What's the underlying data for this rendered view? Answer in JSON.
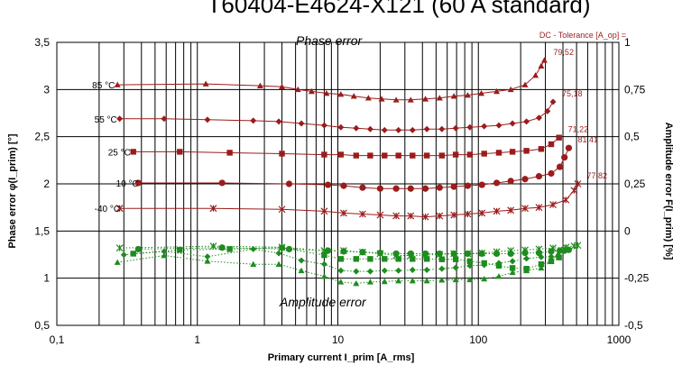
{
  "chart_data": {
    "type": "scatter",
    "title": "T60404-E4624-X121 (60 A standard)",
    "xlabel": "Primary current I_prim [A_rms]",
    "ylabel_left": "Phase error φ(I_prim) [°]",
    "ylabel_right": "Amplitude error F(I_prim) [%]",
    "x_scale": "log",
    "xlim": [
      0.1,
      1000
    ],
    "ylim_left": [
      0.5,
      3.5
    ],
    "ylim_right": [
      -0.5,
      1
    ],
    "x_ticks": [
      "0,1",
      "1",
      "10",
      "100",
      "1000"
    ],
    "y_ticks_left": [
      "0,5",
      "1",
      "1,5",
      "2",
      "2,5",
      "3",
      "3,5"
    ],
    "y_ticks_right": [
      "-0,5",
      "-0,25",
      "0",
      "0,25",
      "0,5",
      "0,75",
      "1"
    ],
    "grid": true,
    "annotations": {
      "phase": "Phase error",
      "amplitude": "Amplitude error",
      "dc_tolerance": "DC - Tolerance [A_op] ="
    },
    "phase_series": [
      {
        "name": "85 °C",
        "dc_value": "79,52",
        "marker": "triangle",
        "x": [
          0.27,
          1.15,
          2.8,
          4.0,
          5.2,
          6.5,
          8.3,
          10.5,
          13.0,
          16.5,
          20.5,
          26.0,
          33.0,
          42.0,
          53.0,
          67.0,
          84.0,
          105.0,
          135.0,
          170.0,
          215.0,
          255.0,
          280.0,
          295.0
        ],
        "y": [
          3.05,
          3.06,
          3.04,
          3.03,
          3.0,
          2.98,
          2.96,
          2.95,
          2.93,
          2.91,
          2.9,
          2.89,
          2.89,
          2.9,
          2.91,
          2.93,
          2.94,
          2.96,
          2.98,
          3.0,
          3.05,
          3.15,
          3.25,
          3.31
        ]
      },
      {
        "name": "55 °C",
        "dc_value": "75,18",
        "marker": "diamond",
        "x": [
          0.28,
          0.58,
          1.18,
          2.5,
          3.8,
          5.5,
          8.0,
          10.5,
          13.5,
          17.0,
          21.5,
          27.0,
          34.0,
          43.0,
          55.0,
          69.0,
          87.0,
          110.0,
          140.0,
          175.0,
          220.0,
          270.0,
          310.0,
          340.0
        ],
        "y": [
          2.69,
          2.69,
          2.68,
          2.67,
          2.66,
          2.64,
          2.62,
          2.6,
          2.59,
          2.58,
          2.57,
          2.57,
          2.57,
          2.58,
          2.58,
          2.59,
          2.6,
          2.61,
          2.62,
          2.64,
          2.66,
          2.7,
          2.77,
          2.87
        ]
      },
      {
        "name": "25 °C",
        "dc_value": "71,22",
        "marker": "square",
        "x": [
          0.35,
          0.75,
          1.7,
          4.0,
          8.0,
          10.5,
          13.5,
          17.0,
          21.5,
          27.0,
          34.0,
          43.0,
          55.0,
          69.0,
          87.0,
          110.0,
          140.0,
          175.0,
          220.0,
          280.0,
          330.0,
          375.0
        ],
        "y": [
          2.34,
          2.34,
          2.33,
          2.32,
          2.31,
          2.31,
          2.3,
          2.3,
          2.3,
          2.3,
          2.3,
          2.3,
          2.3,
          2.31,
          2.31,
          2.32,
          2.33,
          2.34,
          2.35,
          2.37,
          2.42,
          2.49
        ]
      },
      {
        "name": "-10 °C",
        "dc_value": "81,41",
        "marker": "circle",
        "x": [
          0.38,
          1.5,
          4.5,
          8.5,
          11.0,
          15.0,
          20.0,
          26.0,
          33.0,
          42.0,
          53.0,
          67.0,
          84.0,
          106.0,
          135.0,
          170.0,
          215.0,
          270.0,
          330.0,
          380.0,
          410.0,
          440.0
        ],
        "y": [
          2.01,
          2.01,
          2.0,
          1.99,
          1.98,
          1.96,
          1.95,
          1.95,
          1.95,
          1.95,
          1.96,
          1.97,
          1.98,
          1.99,
          2.01,
          2.03,
          2.05,
          2.08,
          2.11,
          2.18,
          2.28,
          2.38
        ]
      },
      {
        "name": "-40 °C",
        "dc_value": "77,82",
        "marker": "cross",
        "x": [
          0.28,
          1.3,
          4.0,
          8.0,
          11.0,
          15.0,
          20.0,
          26.0,
          33.0,
          42.0,
          53.0,
          67.0,
          84.0,
          106.0,
          135.0,
          170.0,
          215.0,
          270.0,
          340.0,
          420.0,
          480.0,
          510.0
        ],
        "y": [
          1.74,
          1.74,
          1.73,
          1.71,
          1.69,
          1.68,
          1.67,
          1.66,
          1.66,
          1.65,
          1.66,
          1.67,
          1.68,
          1.69,
          1.71,
          1.72,
          1.74,
          1.75,
          1.78,
          1.83,
          1.93,
          2.0
        ]
      }
    ],
    "amplitude_series": [
      {
        "name": "85 °C",
        "marker": "triangle",
        "x": [
          0.27,
          0.58,
          1.18,
          2.5,
          3.8,
          5.5,
          8.0,
          10.5,
          13.5,
          17.0,
          21.5,
          27.0,
          34.0,
          43.0,
          55.0,
          69.0,
          87.0,
          110.0,
          140.0,
          175.0,
          220.0,
          280.0,
          330.0,
          370.0
        ],
        "y": [
          -0.166,
          -0.13,
          -0.16,
          -0.176,
          -0.176,
          -0.21,
          -0.24,
          -0.27,
          -0.278,
          -0.27,
          -0.268,
          -0.264,
          -0.264,
          -0.264,
          -0.26,
          -0.258,
          -0.258,
          -0.254,
          -0.24,
          -0.22,
          -0.21,
          -0.196,
          -0.16,
          -0.12
        ]
      },
      {
        "name": "55 °C",
        "marker": "diamond",
        "x": [
          0.3,
          0.58,
          1.18,
          2.5,
          3.8,
          5.5,
          8.0,
          10.5,
          13.5,
          17.0,
          21.5,
          27.0,
          34.0,
          43.0,
          55.0,
          69.0,
          87.0,
          110.0,
          140.0,
          175.0,
          220.0,
          280.0,
          330.0,
          370.0
        ],
        "y": [
          -0.126,
          -0.108,
          -0.136,
          -0.096,
          -0.118,
          -0.156,
          -0.176,
          -0.21,
          -0.214,
          -0.214,
          -0.21,
          -0.21,
          -0.206,
          -0.206,
          -0.2,
          -0.194,
          -0.184,
          -0.18,
          -0.17,
          -0.16,
          -0.146,
          -0.138,
          -0.136,
          -0.134
        ]
      },
      {
        "name": "25 °C",
        "marker": "square",
        "x": [
          0.35,
          0.75,
          1.7,
          4.0,
          8.0,
          10.5,
          13.5,
          17.0,
          21.5,
          27.0,
          34.0,
          43.0,
          55.0,
          69.0,
          87.0,
          110.0,
          140.0,
          175.0,
          220.0,
          280.0,
          330.0,
          375.0
        ],
        "y": [
          -0.12,
          -0.1,
          -0.096,
          -0.088,
          -0.128,
          -0.148,
          -0.148,
          -0.148,
          -0.148,
          -0.148,
          -0.148,
          -0.148,
          -0.15,
          -0.15,
          -0.16,
          -0.17,
          -0.184,
          -0.196,
          -0.2,
          -0.176,
          -0.16,
          -0.14
        ]
      },
      {
        "name": "-10 °C",
        "marker": "circle",
        "x": [
          0.38,
          1.5,
          4.5,
          8.5,
          11.0,
          15.0,
          20.0,
          26.0,
          33.0,
          42.0,
          53.0,
          67.0,
          84.0,
          106.0,
          135.0,
          170.0,
          215.0,
          270.0,
          330.0,
          380.0,
          410.0,
          440.0
        ],
        "y": [
          -0.096,
          -0.088,
          -0.096,
          -0.104,
          -0.108,
          -0.112,
          -0.116,
          -0.12,
          -0.12,
          -0.12,
          -0.12,
          -0.12,
          -0.12,
          -0.12,
          -0.12,
          -0.12,
          -0.116,
          -0.116,
          -0.108,
          -0.104,
          -0.104,
          -0.1
        ]
      },
      {
        "name": "-40 °C",
        "marker": "cross",
        "x": [
          0.28,
          1.3,
          4.0,
          8.0,
          11.0,
          15.0,
          20.0,
          26.0,
          33.0,
          42.0,
          53.0,
          67.0,
          84.0,
          106.0,
          135.0,
          170.0,
          215.0,
          270.0,
          340.0,
          420.0,
          480.0,
          510.0
        ],
        "y": [
          -0.09,
          -0.08,
          -0.086,
          -0.104,
          -0.104,
          -0.112,
          -0.12,
          -0.13,
          -0.13,
          -0.128,
          -0.124,
          -0.12,
          -0.12,
          -0.116,
          -0.11,
          -0.104,
          -0.1,
          -0.096,
          -0.09,
          -0.086,
          -0.08,
          -0.076
        ]
      }
    ]
  },
  "colors": {
    "phase": "#9b1c1c",
    "amplitude": "#1e8c1e",
    "grid": "#000000"
  }
}
